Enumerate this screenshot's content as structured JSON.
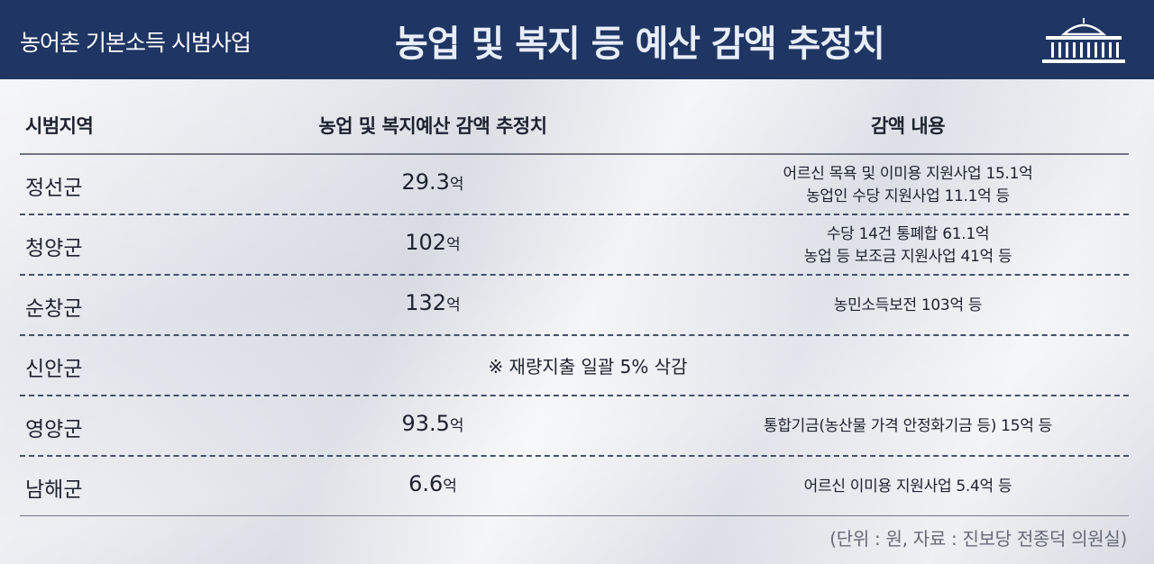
{
  "header": {
    "subtitle": "농어촌 기본소득  시범사업",
    "title": "농업 및 복지 등 예산 감액 추정치",
    "logo_icon": "national-assembly-icon"
  },
  "table": {
    "columns": [
      "시범지역",
      "농업 및 복지예산 감액 추정치",
      "감액 내용"
    ],
    "rows": [
      {
        "region": "정선군",
        "amount": "29.3",
        "unit": "억",
        "details": [
          "어르신 목욕 및 이미용 지원사업 15.1억",
          "농업인 수당 지원사업 11.1억 등"
        ]
      },
      {
        "region": "청양군",
        "amount": "102",
        "unit": "억",
        "details": [
          "수당 14건 통폐합 61.1억",
          "농업 등 보조금 지원사업 41억 등"
        ]
      },
      {
        "region": "순창군",
        "amount": "132",
        "unit": "억",
        "details": [
          "농민소득보전 103억 등"
        ]
      },
      {
        "region": "신안군",
        "note": "※ 재량지출 일괄 5% 삭감"
      },
      {
        "region": "영양군",
        "amount": "93.5",
        "unit": "억",
        "details": [
          "통합기금(농산물 가격 안정화기금 등) 15억 등"
        ]
      },
      {
        "region": "남해군",
        "amount": "6.6",
        "unit": "억",
        "details": [
          "어르신 이미용 지원사업 5.4억 등"
        ]
      }
    ]
  },
  "footer": {
    "source": "(단위 : 원, 자료 : 진보당 전종덕 의원실)"
  },
  "colors": {
    "header_bg": "#1f3563",
    "text": "#1d2230",
    "divider": "#44506b"
  }
}
